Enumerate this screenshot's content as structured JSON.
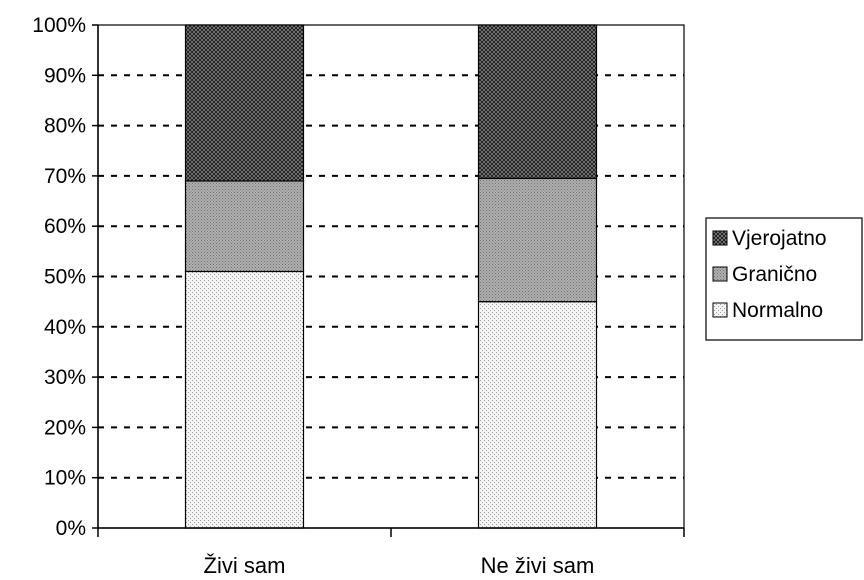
{
  "chart_data": {
    "type": "bar",
    "stacked": true,
    "categories": [
      "Živi sam",
      "Ne živi sam"
    ],
    "series": [
      {
        "name": "Normalno",
        "values": [
          51,
          45
        ],
        "pattern": "light-dots",
        "color": "#f2f2f2"
      },
      {
        "name": "Granično",
        "values": [
          18,
          24.5
        ],
        "pattern": "medium-gray",
        "color": "#a6a6a6"
      },
      {
        "name": "Vjerojatno",
        "values": [
          31,
          30.5
        ],
        "pattern": "dark-crosshatch",
        "color": "#5a5a5a"
      }
    ],
    "ylim": [
      0,
      100
    ],
    "yticks": [
      "0%",
      "10%",
      "20%",
      "30%",
      "40%",
      "50%",
      "60%",
      "70%",
      "80%",
      "90%",
      "100%"
    ],
    "legend_order": [
      "Vjerojatno",
      "Granično",
      "Normalno"
    ],
    "grid": "dashed horizontal",
    "legend_position": "right"
  }
}
